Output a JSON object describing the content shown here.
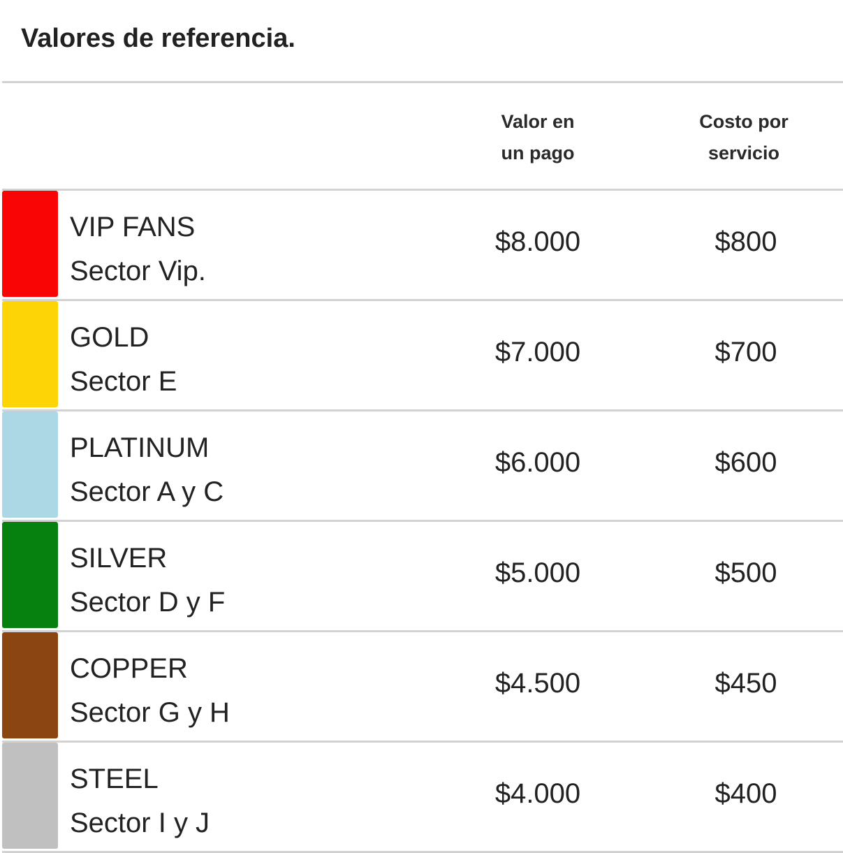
{
  "title": "Valores de referencia.",
  "headers": {
    "price_line1": "Valor en",
    "price_line2": "un pago",
    "cost_line1": "Costo por",
    "cost_line2": "servicio"
  },
  "rows": [
    {
      "name": "VIP FANS",
      "sector": "Sector Vip.",
      "price": "$8.000",
      "cost": "$800",
      "color": "#fa0505"
    },
    {
      "name": "GOLD",
      "sector": "Sector E",
      "price": "$7.000",
      "cost": "$700",
      "color": "#fdd405"
    },
    {
      "name": "PLATINUM",
      "sector": "Sector A y C",
      "price": "$6.000",
      "cost": "$600",
      "color": "#acd8e5"
    },
    {
      "name": "SILVER",
      "sector": "Sector D y F",
      "price": "$5.000",
      "cost": "$500",
      "color": "#06800f"
    },
    {
      "name": "COPPER",
      "sector": "Sector G y H",
      "price": "$4.500",
      "cost": "$450",
      "color": "#8b4513"
    },
    {
      "name": "STEEL",
      "sector": "Sector I y J",
      "price": "$4.000",
      "cost": "$400",
      "color": "#c0c0c0"
    }
  ]
}
